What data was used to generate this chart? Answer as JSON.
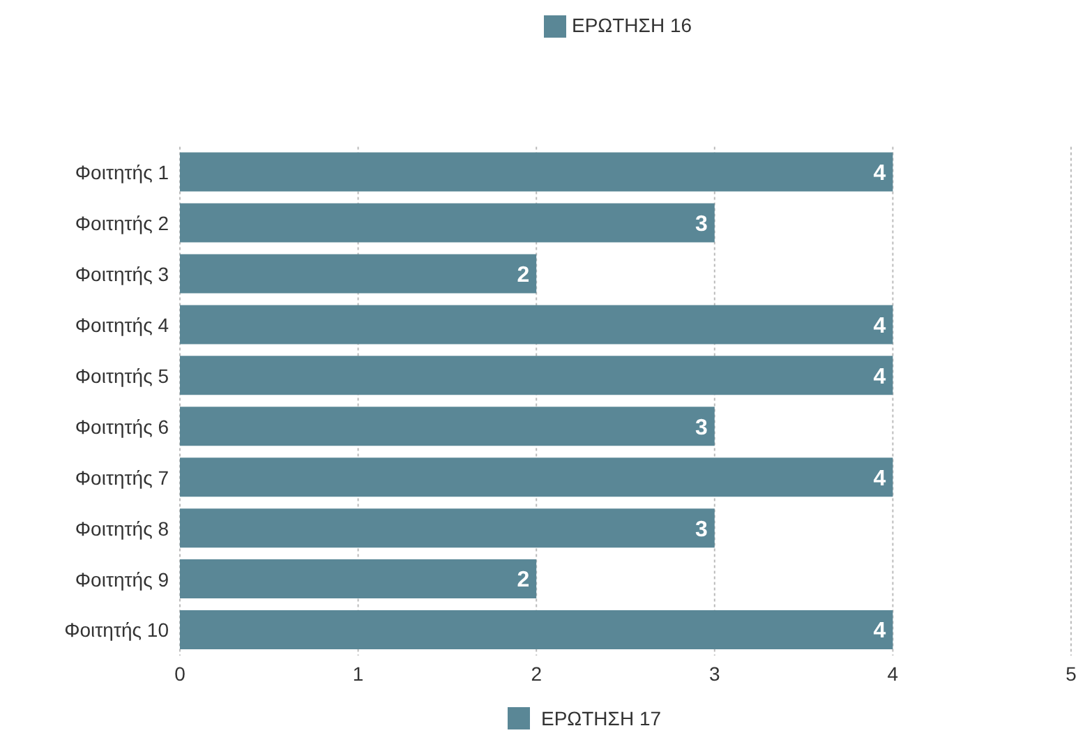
{
  "chart_data": {
    "type": "bar",
    "orientation": "horizontal",
    "categories": [
      "Φοιτητής 1",
      "Φοιτητής 2",
      "Φοιτητής 3",
      "Φοιτητής 4",
      "Φοιτητής 5",
      "Φοιτητής 6",
      "Φοιτητής 7",
      "Φοιτητής 8",
      "Φοιτητής 9",
      "Φοιτητής 10"
    ],
    "series": [
      {
        "name": "ΕΡΩΤΗΣΗ 16",
        "color": "#5a8796",
        "values": [
          4,
          3,
          2,
          4,
          4,
          3,
          4,
          3,
          2,
          4
        ]
      }
    ],
    "xlim": [
      0,
      5
    ],
    "xticks": [
      0,
      1,
      2,
      3,
      4,
      5
    ],
    "grid": "x",
    "legend": "top",
    "data_labels": true,
    "annotations": [
      "ΕΡΩΤΗΣΗ 17"
    ]
  }
}
